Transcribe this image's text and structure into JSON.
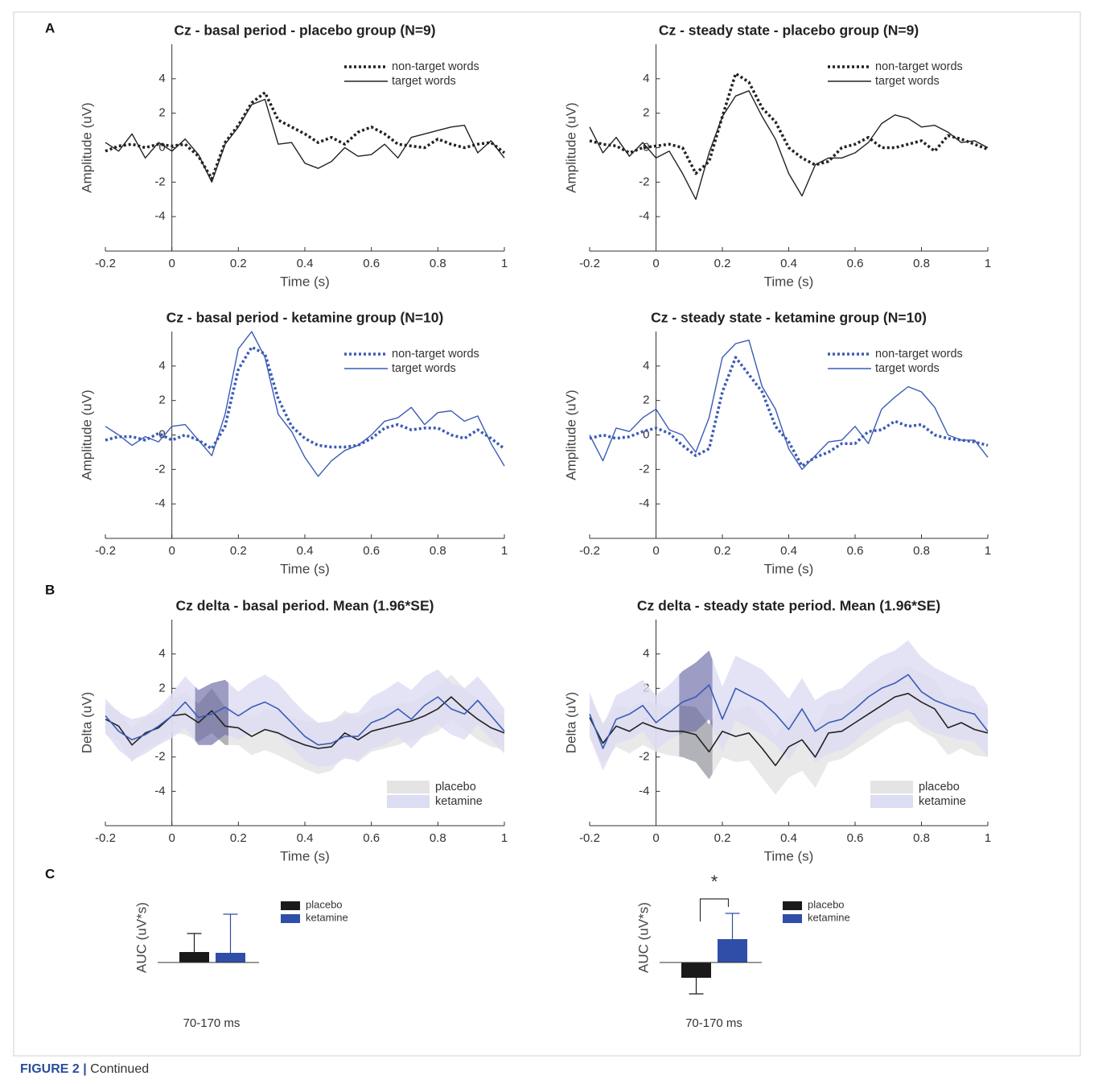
{
  "panel_labels": [
    "A",
    "B",
    "C"
  ],
  "caption": {
    "label": "FIGURE 2 |",
    "text": "Continued"
  },
  "chart_data": [
    {
      "type": "line",
      "title": "Cz - basal period - placebo group (N=9)",
      "xlabel": "Time (s)",
      "ylabel": "Amplitude (uV)",
      "x": [
        -0.2,
        -0.16,
        -0.12,
        -0.08,
        -0.04,
        0,
        0.04,
        0.08,
        0.12,
        0.16,
        0.2,
        0.24,
        0.28,
        0.32,
        0.36,
        0.4,
        0.44,
        0.48,
        0.52,
        0.56,
        0.6,
        0.64,
        0.68,
        0.72,
        0.76,
        0.8,
        0.84,
        0.88,
        0.92,
        0.96,
        1
      ],
      "xlim": [
        -0.2,
        1
      ],
      "xticks": [
        -0.2,
        0,
        0.2,
        0.4,
        0.6,
        0.8,
        1
      ],
      "ylim": [
        -6,
        6
      ],
      "yticks": [
        -4,
        -2,
        0,
        2,
        4
      ],
      "legend": "upper right",
      "series": [
        {
          "name": "non-target words",
          "color": "#222222",
          "style": "dotted",
          "values": [
            -0.2,
            0.1,
            0.2,
            0.0,
            0.2,
            0.1,
            0.2,
            -0.5,
            -1.8,
            0.3,
            1.3,
            2.6,
            3.2,
            1.6,
            1.2,
            0.8,
            0.3,
            0.6,
            0.2,
            0.9,
            1.2,
            0.8,
            0.2,
            0.1,
            0.0,
            0.5,
            0.2,
            0.0,
            0.2,
            0.3,
            -0.3
          ]
        },
        {
          "name": "target words",
          "color": "#222222",
          "style": "solid",
          "values": [
            0.3,
            -0.2,
            0.8,
            -0.6,
            0.3,
            -0.2,
            0.5,
            -0.4,
            -2.0,
            0.2,
            1.2,
            2.5,
            2.8,
            0.2,
            0.3,
            -0.9,
            -1.2,
            -0.8,
            0.0,
            -0.5,
            -0.4,
            0.2,
            -0.6,
            0.6,
            0.8,
            1.0,
            1.2,
            1.3,
            -0.3,
            0.4,
            -0.6
          ]
        }
      ]
    },
    {
      "type": "line",
      "title": "Cz - steady state - placebo group (N=9)",
      "xlabel": "Time (s)",
      "ylabel": "Amplitude (uV)",
      "x": [
        -0.2,
        -0.16,
        -0.12,
        -0.08,
        -0.04,
        0,
        0.04,
        0.08,
        0.12,
        0.16,
        0.2,
        0.24,
        0.28,
        0.32,
        0.36,
        0.4,
        0.44,
        0.48,
        0.52,
        0.56,
        0.6,
        0.64,
        0.68,
        0.72,
        0.76,
        0.8,
        0.84,
        0.88,
        0.92,
        0.96,
        1
      ],
      "xlim": [
        -0.2,
        1
      ],
      "xticks": [
        -0.2,
        0,
        0.2,
        0.4,
        0.6,
        0.8,
        1
      ],
      "ylim": [
        -6,
        6
      ],
      "yticks": [
        -4,
        -2,
        0,
        2,
        4
      ],
      "legend": "upper right",
      "series": [
        {
          "name": "non-target words",
          "color": "#222222",
          "style": "dotted",
          "values": [
            0.4,
            0.2,
            0.1,
            -0.3,
            0.0,
            0.1,
            0.2,
            0.0,
            -1.5,
            -0.8,
            1.8,
            4.3,
            3.8,
            2.3,
            1.5,
            0.0,
            -0.6,
            -1.0,
            -0.8,
            0.0,
            0.2,
            0.6,
            0.0,
            0.0,
            0.2,
            0.4,
            -0.2,
            0.7,
            0.5,
            0.2,
            -0.1
          ]
        },
        {
          "name": "target words",
          "color": "#222222",
          "style": "solid",
          "values": [
            1.2,
            -0.3,
            0.6,
            -0.5,
            0.3,
            -0.6,
            -0.2,
            -1.5,
            -3.0,
            -0.3,
            1.8,
            3.0,
            3.3,
            1.8,
            0.5,
            -1.5,
            -2.8,
            -1.0,
            -0.6,
            -0.6,
            -0.3,
            0.3,
            1.4,
            1.9,
            1.7,
            1.2,
            1.3,
            0.9,
            0.3,
            0.4,
            0.0
          ]
        }
      ]
    },
    {
      "type": "line",
      "title": "Cz - basal period - ketamine group (N=10)",
      "xlabel": "Time (s)",
      "ylabel": "Amplitude (uV)",
      "x": [
        -0.2,
        -0.16,
        -0.12,
        -0.08,
        -0.04,
        0,
        0.04,
        0.08,
        0.12,
        0.16,
        0.2,
        0.24,
        0.28,
        0.32,
        0.36,
        0.4,
        0.44,
        0.48,
        0.52,
        0.56,
        0.6,
        0.64,
        0.68,
        0.72,
        0.76,
        0.8,
        0.84,
        0.88,
        0.92,
        0.96,
        1
      ],
      "xlim": [
        -0.2,
        1
      ],
      "xticks": [
        -0.2,
        0,
        0.2,
        0.4,
        0.6,
        0.8,
        1
      ],
      "ylim": [
        -6,
        6
      ],
      "yticks": [
        -4,
        -2,
        0,
        2,
        4
      ],
      "legend": "upper right",
      "series": [
        {
          "name": "non-target words",
          "color": "#3b5bb5",
          "style": "dotted",
          "values": [
            -0.3,
            -0.1,
            -0.1,
            -0.3,
            0.1,
            -0.3,
            0.0,
            -0.3,
            -0.8,
            0.5,
            3.8,
            5.1,
            4.7,
            2.1,
            0.5,
            -0.2,
            -0.6,
            -0.7,
            -0.7,
            -0.6,
            -0.2,
            0.4,
            0.6,
            0.3,
            0.4,
            0.4,
            0.0,
            -0.2,
            0.3,
            -0.2,
            -0.8
          ]
        },
        {
          "name": "target words",
          "color": "#3b5bb5",
          "style": "solid",
          "values": [
            0.5,
            0.0,
            -0.6,
            -0.1,
            -0.4,
            0.5,
            0.6,
            -0.3,
            -1.2,
            1.2,
            5.0,
            6.0,
            4.5,
            1.2,
            0.2,
            -1.3,
            -2.4,
            -1.5,
            -0.9,
            -0.6,
            0.0,
            0.8,
            1.0,
            1.6,
            0.6,
            1.3,
            1.4,
            0.8,
            1.1,
            -0.5,
            -1.8
          ]
        }
      ]
    },
    {
      "type": "line",
      "title": "Cz - steady state - ketamine group (N=10)",
      "xlabel": "Time (s)",
      "ylabel": "Amplitude (uV)",
      "x": [
        -0.2,
        -0.16,
        -0.12,
        -0.08,
        -0.04,
        0,
        0.04,
        0.08,
        0.12,
        0.16,
        0.2,
        0.24,
        0.28,
        0.32,
        0.36,
        0.4,
        0.44,
        0.48,
        0.52,
        0.56,
        0.6,
        0.64,
        0.68,
        0.72,
        0.76,
        0.8,
        0.84,
        0.88,
        0.92,
        0.96,
        1
      ],
      "xlim": [
        -0.2,
        1
      ],
      "xticks": [
        -0.2,
        0,
        0.2,
        0.4,
        0.6,
        0.8,
        1
      ],
      "ylim": [
        -6,
        6
      ],
      "yticks": [
        -4,
        -2,
        0,
        2,
        4
      ],
      "legend": "upper right",
      "series": [
        {
          "name": "non-target words",
          "color": "#3b5bb5",
          "style": "dotted",
          "values": [
            -0.2,
            0.0,
            -0.2,
            -0.1,
            0.2,
            0.4,
            0.1,
            -0.6,
            -1.2,
            -0.8,
            2.5,
            4.5,
            3.5,
            2.5,
            0.5,
            -0.4,
            -1.8,
            -1.3,
            -1.0,
            -0.5,
            -0.5,
            0.2,
            0.3,
            0.8,
            0.5,
            0.6,
            0.0,
            -0.2,
            -0.3,
            -0.4,
            -0.6
          ]
        },
        {
          "name": "target words",
          "color": "#3b5bb5",
          "style": "solid",
          "values": [
            0.0,
            -1.5,
            0.4,
            0.2,
            1.0,
            1.5,
            0.3,
            0.0,
            -1.0,
            1.0,
            4.5,
            5.3,
            5.5,
            2.8,
            1.5,
            -0.8,
            -2.0,
            -1.2,
            -0.4,
            -0.3,
            0.5,
            -0.5,
            1.5,
            2.2,
            2.8,
            2.5,
            1.6,
            0.0,
            -0.3,
            -0.3,
            -1.3
          ]
        }
      ]
    },
    {
      "type": "band",
      "title": "Cz delta - basal period. Mean (1.96*SE)",
      "xlabel": "Time (s)",
      "ylabel": "Delta (uV)",
      "x": [
        -0.2,
        -0.16,
        -0.12,
        -0.08,
        -0.04,
        0,
        0.04,
        0.08,
        0.12,
        0.16,
        0.2,
        0.24,
        0.28,
        0.32,
        0.36,
        0.4,
        0.44,
        0.48,
        0.52,
        0.56,
        0.6,
        0.64,
        0.68,
        0.72,
        0.76,
        0.8,
        0.84,
        0.88,
        0.92,
        0.96,
        1
      ],
      "xlim": [
        -0.2,
        1
      ],
      "xticks": [
        -0.2,
        0,
        0.2,
        0.4,
        0.6,
        0.8,
        1
      ],
      "ylim": [
        -6,
        6
      ],
      "yticks": [
        -4,
        -2,
        0,
        2,
        4
      ],
      "legend": "lower right",
      "highlight": [
        0.07,
        0.17
      ],
      "series": [
        {
          "name": "placebo",
          "color": "#222222",
          "band_color": "#e4e4e4",
          "highlight_color": "#8e8e9a",
          "values": [
            0.2,
            -0.2,
            -1.3,
            -0.6,
            -0.3,
            0.4,
            0.5,
            0.0,
            0.7,
            -0.2,
            -0.3,
            -0.8,
            -0.4,
            -0.6,
            -1.0,
            -1.3,
            -1.5,
            -1.4,
            -0.6,
            -1.0,
            -0.5,
            -0.3,
            -0.1,
            0.1,
            0.4,
            0.8,
            1.5,
            0.8,
            0.2,
            -0.3,
            -0.6
          ],
          "error": [
            0.9,
            0.9,
            1.0,
            0.9,
            0.9,
            1.0,
            1.2,
            1.1,
            1.3,
            1.1,
            1.0,
            1.1,
            1.2,
            1.3,
            1.3,
            1.4,
            1.5,
            1.4,
            1.3,
            1.3,
            1.2,
            1.2,
            1.2,
            1.1,
            1.2,
            1.3,
            1.3,
            1.2,
            1.2,
            1.1,
            1.0
          ]
        },
        {
          "name": "ketamine",
          "color": "#3b5bb5",
          "band_color": "#dcdcf2",
          "highlight_color": "#6c6ca4",
          "values": [
            0.4,
            -0.5,
            -1.0,
            -0.7,
            -0.2,
            0.4,
            1.2,
            0.3,
            0.5,
            0.9,
            0.4,
            0.9,
            1.2,
            0.8,
            0.0,
            -0.8,
            -1.3,
            -1.2,
            -0.8,
            -0.8,
            0.0,
            0.3,
            0.8,
            0.2,
            1.0,
            1.5,
            0.8,
            0.5,
            1.3,
            0.4,
            -0.5
          ],
          "error": [
            1.0,
            1.1,
            1.2,
            1.1,
            1.1,
            1.3,
            1.5,
            1.6,
            1.8,
            1.6,
            1.4,
            1.5,
            1.6,
            1.5,
            1.4,
            1.4,
            1.3,
            1.3,
            1.3,
            1.4,
            1.5,
            1.6,
            1.6,
            1.7,
            1.7,
            1.6,
            1.5,
            1.5,
            1.4,
            1.4,
            1.3
          ]
        }
      ]
    },
    {
      "type": "band",
      "title": "Cz delta - steady state period. Mean (1.96*SE)",
      "xlabel": "Time (s)",
      "ylabel": "Delta (uV)",
      "x": [
        -0.2,
        -0.16,
        -0.12,
        -0.08,
        -0.04,
        0,
        0.04,
        0.08,
        0.12,
        0.16,
        0.2,
        0.24,
        0.28,
        0.32,
        0.36,
        0.4,
        0.44,
        0.48,
        0.52,
        0.56,
        0.6,
        0.64,
        0.68,
        0.72,
        0.76,
        0.8,
        0.84,
        0.88,
        0.92,
        0.96,
        1
      ],
      "xlim": [
        -0.2,
        1
      ],
      "xticks": [
        -0.2,
        0,
        0.2,
        0.4,
        0.6,
        0.8,
        1
      ],
      "ylim": [
        -6,
        6
      ],
      "yticks": [
        -4,
        -2,
        0,
        2,
        4
      ],
      "legend": "lower right",
      "highlight": [
        0.07,
        0.17
      ],
      "series": [
        {
          "name": "placebo",
          "color": "#222222",
          "band_color": "#e4e4e4",
          "highlight_color": "#8e8e9a",
          "values": [
            0.3,
            -1.2,
            -0.2,
            -0.5,
            0.0,
            -0.3,
            -0.5,
            -0.5,
            -0.7,
            -1.7,
            -0.5,
            -0.8,
            -0.6,
            -1.5,
            -2.5,
            -1.4,
            -1.0,
            -2.0,
            -0.6,
            -0.5,
            0.0,
            0.5,
            1.0,
            1.5,
            1.7,
            1.2,
            0.8,
            -0.3,
            0.0,
            -0.4,
            -0.6
          ],
          "error": [
            1.2,
            1.2,
            1.2,
            1.3,
            1.3,
            1.4,
            1.4,
            1.5,
            1.6,
            1.6,
            1.5,
            1.5,
            1.6,
            1.7,
            1.7,
            1.8,
            1.8,
            1.8,
            1.7,
            1.6,
            1.6,
            1.6,
            1.6,
            1.6,
            1.6,
            1.7,
            1.7,
            1.6,
            1.5,
            1.5,
            1.4
          ]
        },
        {
          "name": "ketamine",
          "color": "#3b5bb5",
          "band_color": "#dcdcf2",
          "highlight_color": "#6c6ca4",
          "values": [
            0.5,
            -1.5,
            0.2,
            0.5,
            1.0,
            0.0,
            0.6,
            1.2,
            1.5,
            2.2,
            0.2,
            2.0,
            1.6,
            1.2,
            0.5,
            -0.4,
            0.8,
            -0.5,
            0.0,
            0.2,
            0.8,
            1.5,
            2.0,
            2.3,
            2.8,
            1.8,
            1.3,
            1.0,
            0.7,
            0.5,
            -0.5
          ],
          "error": [
            1.3,
            1.3,
            1.4,
            1.5,
            1.5,
            1.6,
            1.6,
            1.8,
            2.0,
            2.0,
            1.9,
            1.9,
            1.9,
            1.9,
            1.8,
            1.8,
            1.8,
            1.8,
            1.8,
            1.8,
            1.9,
            1.9,
            1.9,
            1.9,
            2.0,
            2.0,
            1.9,
            1.8,
            1.7,
            1.6,
            1.5
          ]
        }
      ]
    },
    {
      "type": "bar",
      "ylabel": "AUC (uV*s)",
      "categories": [
        "70-170 ms"
      ],
      "ylim": [
        -5,
        7
      ],
      "series": [
        {
          "name": "placebo",
          "color": "#1a1a1a",
          "values": [
            1.3
          ],
          "error": [
            2.3
          ]
        },
        {
          "name": "ketamine",
          "color": "#2e4ea8",
          "values": [
            1.2
          ],
          "error": [
            4.8
          ]
        }
      ]
    },
    {
      "type": "bar",
      "ylabel": "AUC (uV*s)",
      "categories": [
        "70-170 ms"
      ],
      "ylim": [
        -5,
        7
      ],
      "significance": "*",
      "series": [
        {
          "name": "placebo",
          "color": "#1a1a1a",
          "values": [
            -1.9
          ],
          "error": [
            2.0
          ]
        },
        {
          "name": "ketamine",
          "color": "#2e4ea8",
          "values": [
            2.9
          ],
          "error": [
            3.2
          ]
        }
      ]
    }
  ]
}
